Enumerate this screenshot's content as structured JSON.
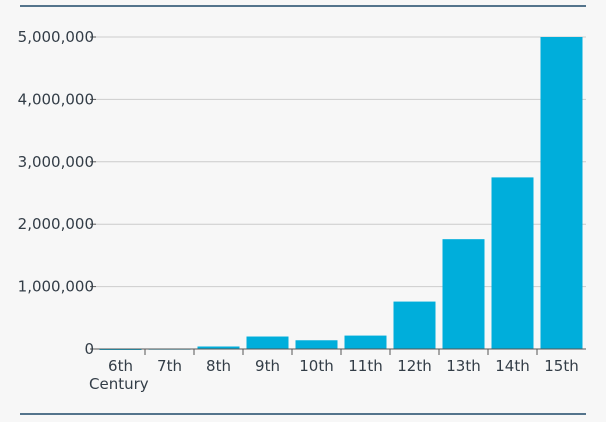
{
  "chart_data": {
    "type": "bar",
    "categories": [
      "6th",
      "7th",
      "8th",
      "9th",
      "10th",
      "11th",
      "12th",
      "13th",
      "14th",
      "15th"
    ],
    "values": [
      0,
      5000,
      40000,
      200000,
      140000,
      215000,
      760000,
      1760000,
      2750000,
      5000000
    ],
    "title": "",
    "xlabel": "Century",
    "ylabel": "",
    "ylim": [
      0,
      5000000
    ],
    "yticks": [
      0,
      1000000,
      2000000,
      3000000,
      4000000,
      5000000
    ],
    "ytick_labels": [
      "0",
      "1,000,000",
      "2,000,000",
      "3,000,000",
      "4,000,000",
      "5,000,000"
    ],
    "grid": "horizontal",
    "legend": "none",
    "bar_color": "#00aedb",
    "rule_color": "#1f4868",
    "grid_color": "#cccccc"
  }
}
